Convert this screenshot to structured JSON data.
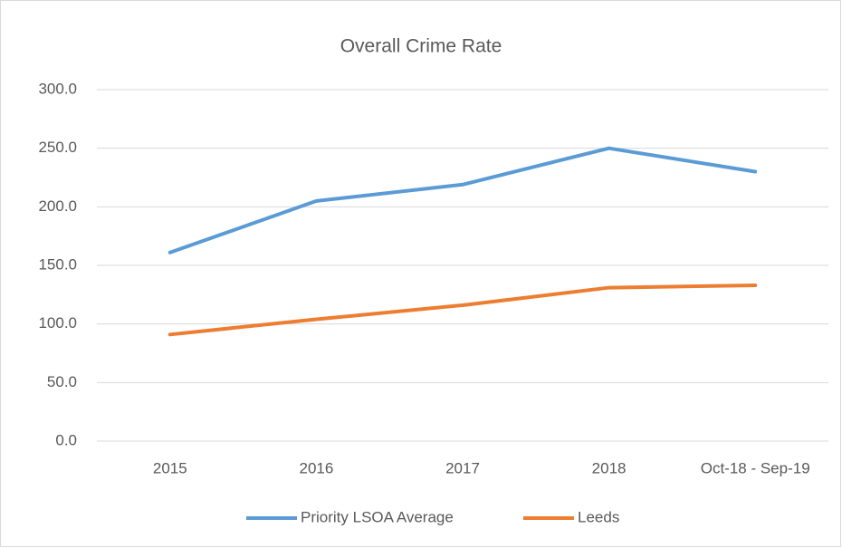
{
  "chart_data": {
    "type": "line",
    "title": "Overall Crime Rate",
    "categories": [
      "2015",
      "2016",
      "2017",
      "2018",
      "Oct-18 - Sep-19"
    ],
    "series": [
      {
        "name": "Priority LSOA Average",
        "color": "#5b9bd5",
        "values": [
          161,
          205,
          219,
          250,
          230
        ]
      },
      {
        "name": "Leeds",
        "color": "#ed7d31",
        "values": [
          91,
          104,
          116,
          131,
          133
        ]
      }
    ],
    "ylim": [
      0,
      300
    ],
    "yticks": [
      {
        "value": 0,
        "label": "0.0"
      },
      {
        "value": 50,
        "label": "50.0"
      },
      {
        "value": 100,
        "label": "100.0"
      },
      {
        "value": 150,
        "label": "150.0"
      },
      {
        "value": 200,
        "label": "200.0"
      },
      {
        "value": 250,
        "label": "250.0"
      },
      {
        "value": 300,
        "label": "300.0"
      }
    ],
    "grid": true,
    "legend": "bottom"
  }
}
